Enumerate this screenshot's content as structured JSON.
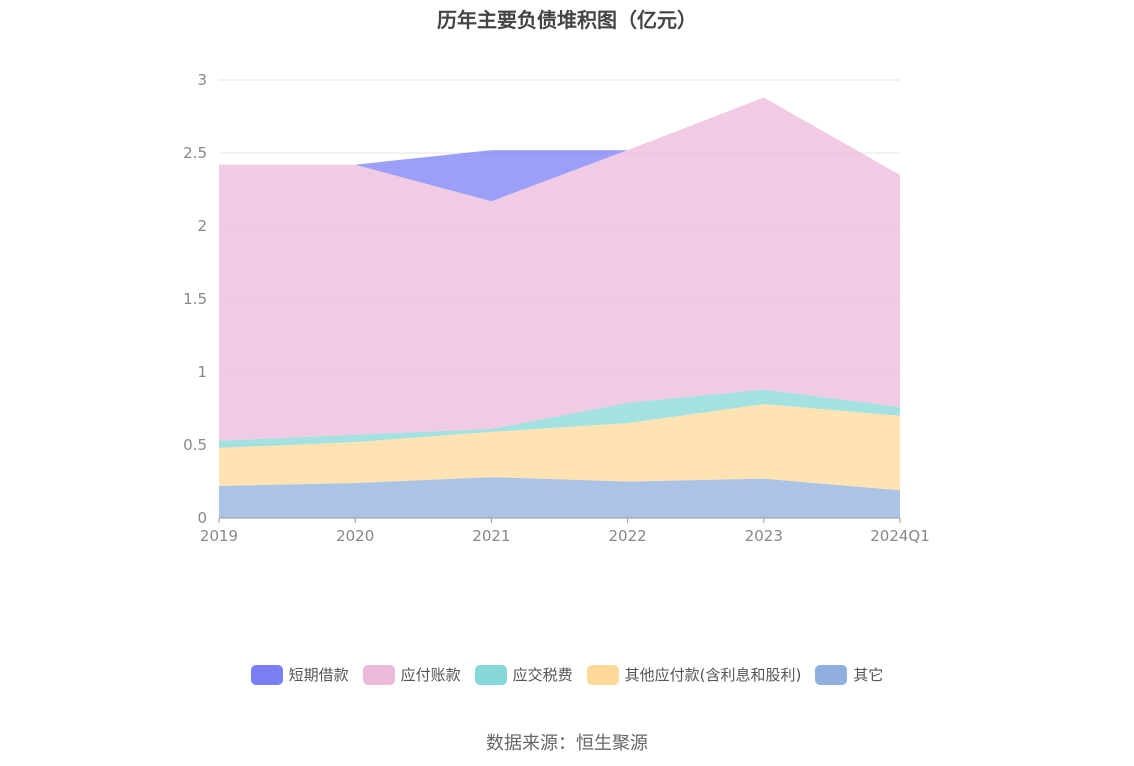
{
  "chart_data": {
    "type": "area",
    "stacked": true,
    "title": "历年主要负债堆积图（亿元）",
    "categories": [
      "2019",
      "2020",
      "2021",
      "2022",
      "2023",
      "2024Q1"
    ],
    "ylim": [
      0,
      3
    ],
    "yticks": [
      "0",
      "0.5",
      "1",
      "1.5",
      "2",
      "2.5",
      "3"
    ],
    "grid": true,
    "legend_position": "bottom",
    "series": [
      {
        "name": "其它",
        "color": "#8fb0de",
        "values": [
          0.22,
          0.24,
          0.28,
          0.25,
          0.27,
          0.19
        ]
      },
      {
        "name": "其他应付款(含利息和股利)",
        "color": "#ffd99a",
        "values": [
          0.26,
          0.28,
          0.31,
          0.4,
          0.51,
          0.51
        ]
      },
      {
        "name": "应交税费",
        "color": "#86d8d8",
        "values": [
          0.05,
          0.05,
          0.02,
          0.14,
          0.1,
          0.06
        ]
      },
      {
        "name": "应付账款",
        "color": "#ebb9da",
        "values": [
          1.89,
          1.85,
          1.56,
          1.73,
          2.0,
          1.59
        ]
      },
      {
        "name": "短期借款",
        "color": "#7b7ff5",
        "values": [
          0,
          0,
          0.35,
          0,
          0,
          0
        ]
      }
    ],
    "legend_order": [
      "短期借款",
      "应付账款",
      "应交税费",
      "其他应付款(含利息和股利)",
      "其它"
    ]
  },
  "source_text": "数据来源：恒生聚源"
}
